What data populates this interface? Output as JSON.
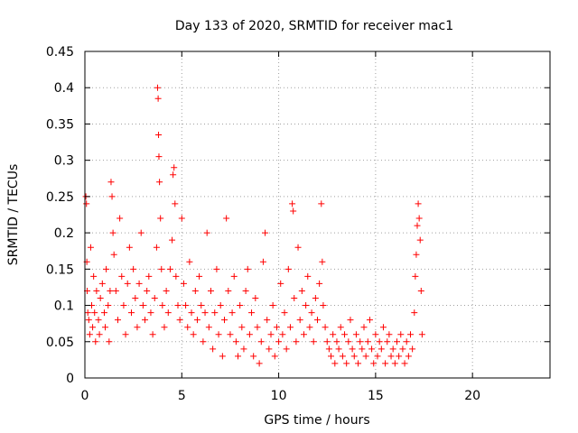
{
  "chart_data": {
    "type": "scatter",
    "title": "Day 133 of 2020, SRMTID for receiver mac1",
    "xlabel": "GPS time / hours",
    "ylabel": "SRMTID / TECUs",
    "xlim": [
      0,
      24
    ],
    "ylim": [
      0,
      0.45
    ],
    "xticks": [
      0,
      5,
      10,
      15,
      20
    ],
    "xtick_labels": [
      "0",
      "5",
      "10",
      "15",
      "20"
    ],
    "yticks": [
      0,
      0.05,
      0.1,
      0.15,
      0.2,
      0.25,
      0.3,
      0.35,
      0.4,
      0.45
    ],
    "ytick_labels": [
      "0",
      "0.05",
      "0.1",
      "0.15",
      "0.2",
      "0.25",
      "0.3",
      "0.35",
      "0.4",
      "0.45"
    ],
    "grid": true,
    "marker": "plus",
    "color": "#ff0000",
    "series": [
      {
        "name": "SRMTID",
        "points": [
          [
            0.05,
            0.25
          ],
          [
            0.08,
            0.24
          ],
          [
            0.1,
            0.16
          ],
          [
            0.12,
            0.12
          ],
          [
            0.15,
            0.09
          ],
          [
            0.2,
            0.08
          ],
          [
            0.25,
            0.06
          ],
          [
            0.3,
            0.18
          ],
          [
            0.35,
            0.1
          ],
          [
            0.4,
            0.07
          ],
          [
            0.45,
            0.14
          ],
          [
            0.5,
            0.09
          ],
          [
            0.55,
            0.05
          ],
          [
            0.6,
            0.12
          ],
          [
            0.7,
            0.08
          ],
          [
            0.75,
            0.06
          ],
          [
            0.8,
            0.11
          ],
          [
            0.9,
            0.13
          ],
          [
            1.0,
            0.09
          ],
          [
            1.05,
            0.07
          ],
          [
            1.1,
            0.15
          ],
          [
            1.2,
            0.1
          ],
          [
            1.25,
            0.05
          ],
          [
            1.3,
            0.12
          ],
          [
            1.35,
            0.27
          ],
          [
            1.4,
            0.25
          ],
          [
            1.45,
            0.2
          ],
          [
            1.5,
            0.17
          ],
          [
            1.6,
            0.12
          ],
          [
            1.7,
            0.08
          ],
          [
            1.8,
            0.22
          ],
          [
            1.9,
            0.14
          ],
          [
            2.0,
            0.1
          ],
          [
            2.1,
            0.06
          ],
          [
            2.2,
            0.13
          ],
          [
            2.3,
            0.18
          ],
          [
            2.4,
            0.09
          ],
          [
            2.5,
            0.15
          ],
          [
            2.6,
            0.11
          ],
          [
            2.7,
            0.07
          ],
          [
            2.8,
            0.13
          ],
          [
            2.9,
            0.2
          ],
          [
            3.0,
            0.1
          ],
          [
            3.1,
            0.08
          ],
          [
            3.2,
            0.12
          ],
          [
            3.3,
            0.14
          ],
          [
            3.4,
            0.09
          ],
          [
            3.5,
            0.06
          ],
          [
            3.6,
            0.11
          ],
          [
            3.7,
            0.18
          ],
          [
            3.75,
            0.4
          ],
          [
            3.78,
            0.385
          ],
          [
            3.8,
            0.335
          ],
          [
            3.82,
            0.305
          ],
          [
            3.85,
            0.27
          ],
          [
            3.9,
            0.22
          ],
          [
            3.95,
            0.15
          ],
          [
            4.0,
            0.1
          ],
          [
            4.1,
            0.07
          ],
          [
            4.2,
            0.12
          ],
          [
            4.3,
            0.09
          ],
          [
            4.4,
            0.15
          ],
          [
            4.5,
            0.19
          ],
          [
            4.55,
            0.28
          ],
          [
            4.6,
            0.29
          ],
          [
            4.65,
            0.24
          ],
          [
            4.7,
            0.14
          ],
          [
            4.8,
            0.1
          ],
          [
            4.9,
            0.08
          ],
          [
            5.0,
            0.22
          ],
          [
            5.1,
            0.13
          ],
          [
            5.2,
            0.1
          ],
          [
            5.3,
            0.07
          ],
          [
            5.4,
            0.16
          ],
          [
            5.5,
            0.09
          ],
          [
            5.6,
            0.06
          ],
          [
            5.7,
            0.12
          ],
          [
            5.8,
            0.08
          ],
          [
            5.9,
            0.14
          ],
          [
            6.0,
            0.1
          ],
          [
            6.1,
            0.05
          ],
          [
            6.2,
            0.09
          ],
          [
            6.3,
            0.2
          ],
          [
            6.4,
            0.07
          ],
          [
            6.5,
            0.12
          ],
          [
            6.6,
            0.04
          ],
          [
            6.7,
            0.09
          ],
          [
            6.8,
            0.15
          ],
          [
            6.9,
            0.06
          ],
          [
            7.0,
            0.1
          ],
          [
            7.1,
            0.03
          ],
          [
            7.2,
            0.08
          ],
          [
            7.3,
            0.22
          ],
          [
            7.4,
            0.12
          ],
          [
            7.5,
            0.06
          ],
          [
            7.6,
            0.09
          ],
          [
            7.7,
            0.14
          ],
          [
            7.8,
            0.05
          ],
          [
            7.9,
            0.03
          ],
          [
            8.0,
            0.1
          ],
          [
            8.1,
            0.07
          ],
          [
            8.2,
            0.04
          ],
          [
            8.3,
            0.12
          ],
          [
            8.4,
            0.15
          ],
          [
            8.5,
            0.06
          ],
          [
            8.6,
            0.09
          ],
          [
            8.7,
            0.03
          ],
          [
            8.8,
            0.11
          ],
          [
            8.9,
            0.07
          ],
          [
            9.0,
            0.02
          ],
          [
            9.1,
            0.05
          ],
          [
            9.2,
            0.16
          ],
          [
            9.3,
            0.2
          ],
          [
            9.4,
            0.08
          ],
          [
            9.5,
            0.04
          ],
          [
            9.6,
            0.06
          ],
          [
            9.7,
            0.1
          ],
          [
            9.8,
            0.03
          ],
          [
            9.9,
            0.07
          ],
          [
            10.0,
            0.05
          ],
          [
            10.1,
            0.13
          ],
          [
            10.2,
            0.06
          ],
          [
            10.3,
            0.09
          ],
          [
            10.4,
            0.04
          ],
          [
            10.5,
            0.15
          ],
          [
            10.6,
            0.07
          ],
          [
            10.7,
            0.24
          ],
          [
            10.75,
            0.23
          ],
          [
            10.8,
            0.11
          ],
          [
            10.9,
            0.05
          ],
          [
            11.0,
            0.18
          ],
          [
            11.1,
            0.08
          ],
          [
            11.2,
            0.12
          ],
          [
            11.3,
            0.06
          ],
          [
            11.4,
            0.1
          ],
          [
            11.5,
            0.14
          ],
          [
            11.6,
            0.07
          ],
          [
            11.7,
            0.09
          ],
          [
            11.8,
            0.05
          ],
          [
            11.9,
            0.11
          ],
          [
            12.0,
            0.08
          ],
          [
            12.1,
            0.13
          ],
          [
            12.2,
            0.24
          ],
          [
            12.25,
            0.16
          ],
          [
            12.3,
            0.1
          ],
          [
            12.4,
            0.07
          ],
          [
            12.5,
            0.05
          ],
          [
            12.6,
            0.04
          ],
          [
            12.7,
            0.03
          ],
          [
            12.8,
            0.06
          ],
          [
            12.9,
            0.02
          ],
          [
            13.0,
            0.05
          ],
          [
            13.1,
            0.04
          ],
          [
            13.2,
            0.07
          ],
          [
            13.3,
            0.03
          ],
          [
            13.4,
            0.06
          ],
          [
            13.5,
            0.02
          ],
          [
            13.6,
            0.05
          ],
          [
            13.7,
            0.08
          ],
          [
            13.8,
            0.04
          ],
          [
            13.9,
            0.03
          ],
          [
            14.0,
            0.06
          ],
          [
            14.1,
            0.02
          ],
          [
            14.2,
            0.05
          ],
          [
            14.3,
            0.04
          ],
          [
            14.4,
            0.07
          ],
          [
            14.5,
            0.03
          ],
          [
            14.6,
            0.05
          ],
          [
            14.7,
            0.08
          ],
          [
            14.8,
            0.04
          ],
          [
            14.9,
            0.02
          ],
          [
            15.0,
            0.06
          ],
          [
            15.1,
            0.03
          ],
          [
            15.2,
            0.05
          ],
          [
            15.3,
            0.04
          ],
          [
            15.4,
            0.07
          ],
          [
            15.5,
            0.02
          ],
          [
            15.6,
            0.05
          ],
          [
            15.7,
            0.06
          ],
          [
            15.8,
            0.03
          ],
          [
            15.9,
            0.04
          ],
          [
            16.0,
            0.02
          ],
          [
            16.1,
            0.05
          ],
          [
            16.2,
            0.03
          ],
          [
            16.3,
            0.06
          ],
          [
            16.4,
            0.04
          ],
          [
            16.5,
            0.02
          ],
          [
            16.6,
            0.05
          ],
          [
            16.7,
            0.03
          ],
          [
            16.8,
            0.06
          ],
          [
            16.9,
            0.04
          ],
          [
            17.0,
            0.09
          ],
          [
            17.05,
            0.14
          ],
          [
            17.1,
            0.17
          ],
          [
            17.15,
            0.21
          ],
          [
            17.2,
            0.24
          ],
          [
            17.25,
            0.22
          ],
          [
            17.3,
            0.19
          ],
          [
            17.35,
            0.12
          ],
          [
            17.4,
            0.06
          ]
        ]
      }
    ]
  }
}
